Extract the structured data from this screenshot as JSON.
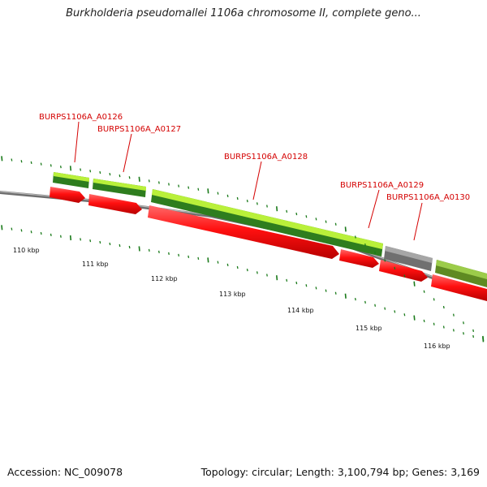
{
  "title": "Burkholderia pseudomallei 1106a chromosome II, complete geno...",
  "footer": {
    "accession": "Accession: NC_009078",
    "summary": "Topology: circular; Length: 3,100,794 bp; Genes: 3,169"
  },
  "gene_labels": [
    "BURPS1106A_A0126",
    "BURPS1106A_A0127",
    "BURPS1106A_A0128",
    "BURPS1106A_A0129",
    "BURPS1106A_A0130"
  ],
  "kbp_labels": [
    "110 kbp",
    "111 kbp",
    "112 kbp",
    "113 kbp",
    "114 kbp",
    "115 kbp",
    "116 kbp"
  ],
  "colors": {
    "backbone": "#8a8a8a",
    "cds_forward": "#e00000",
    "gene_light": "#b9f03a",
    "gene_dark": "#2e7d1e",
    "gene_grey": "#808080",
    "gene_olive": "#6f9a2a",
    "tick": "#1a7a1a",
    "label": "#d40000"
  }
}
